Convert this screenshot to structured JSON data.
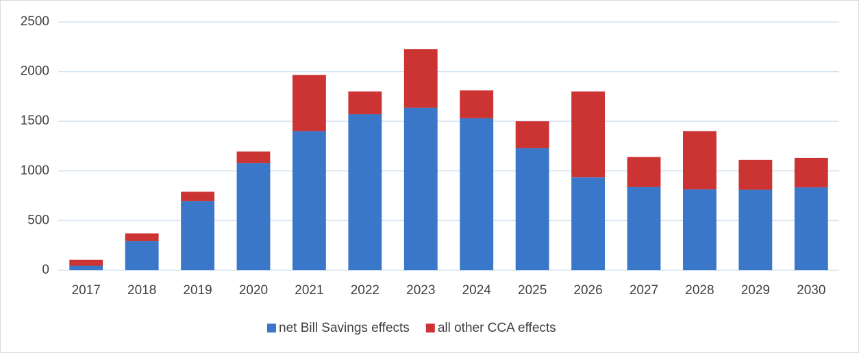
{
  "chart_data": {
    "type": "stacked-bar",
    "categories": [
      "2017",
      "2018",
      "2019",
      "2020",
      "2021",
      "2022",
      "2023",
      "2024",
      "2025",
      "2026",
      "2027",
      "2028",
      "2029",
      "2030"
    ],
    "series": [
      {
        "name": "net Bill Savings effects",
        "color": "#3a77c8",
        "values": [
          45,
          295,
          695,
          1080,
          1400,
          1570,
          1635,
          1530,
          1230,
          935,
          840,
          815,
          810,
          835
        ]
      },
      {
        "name": "all other CCA effects",
        "color": "#cc3333",
        "values": [
          60,
          75,
          95,
          115,
          565,
          230,
          590,
          280,
          270,
          865,
          300,
          585,
          300,
          295
        ]
      }
    ],
    "ylim": [
      0,
      2500
    ],
    "yticks": [
      0,
      500,
      1000,
      1500,
      2000,
      2500
    ],
    "grid": true,
    "legend": "bottom"
  }
}
